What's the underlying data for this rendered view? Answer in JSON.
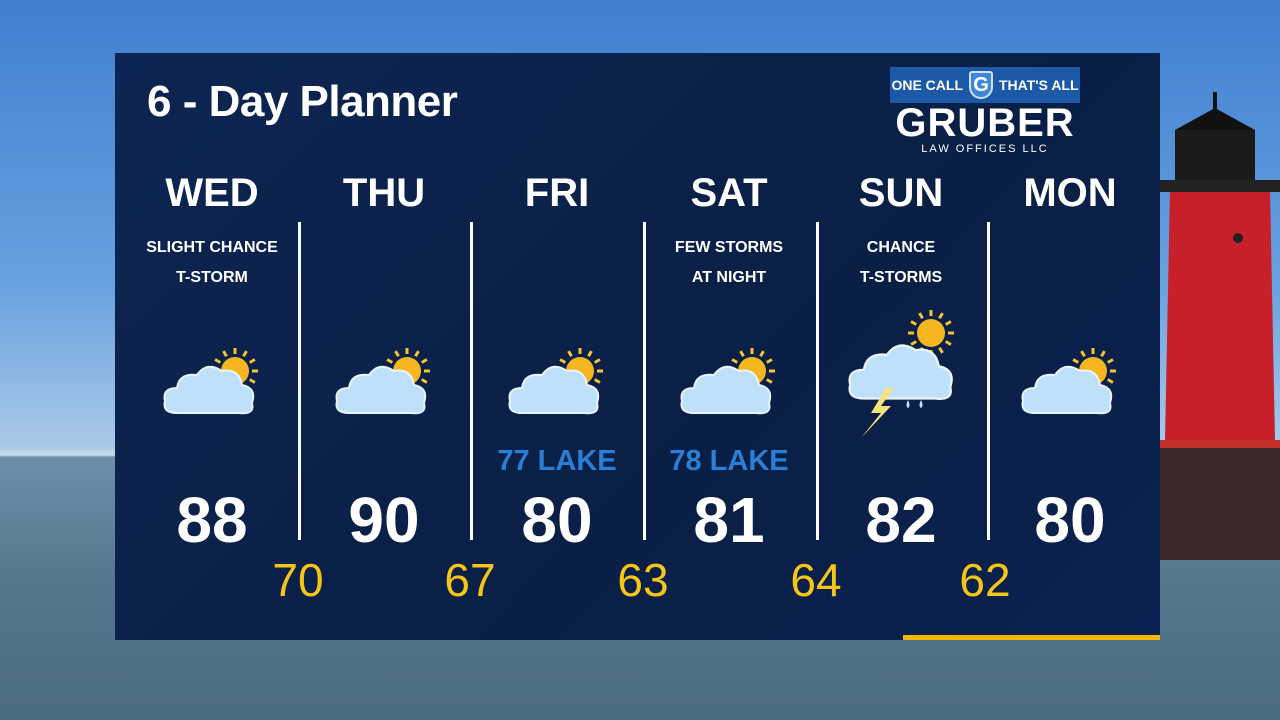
{
  "title": "6 - Day Planner",
  "sponsor": {
    "tagline_left": "ONE CALL",
    "shield_letter": "G",
    "tagline_right": "THAT'S ALL",
    "name": "GRUBER",
    "sub": "LAW OFFICES LLC"
  },
  "colors": {
    "panel": "#0a1f45",
    "low_temp": "#f5c518",
    "lake_temp": "#2a7fd4",
    "accent_bar": "#f5b800"
  },
  "days": [
    {
      "name": "WED",
      "desc1": "SLIGHT CHANCE",
      "desc2": "T-STORM",
      "icon": "partly-cloudy-icon",
      "lake": "",
      "high": "88"
    },
    {
      "name": "THU",
      "desc1": "",
      "desc2": "",
      "icon": "partly-cloudy-icon",
      "lake": "",
      "high": "90"
    },
    {
      "name": "FRI",
      "desc1": "",
      "desc2": "",
      "icon": "partly-cloudy-icon",
      "lake": "77 LAKE",
      "high": "80"
    },
    {
      "name": "SAT",
      "desc1": "FEW STORMS",
      "desc2": "AT NIGHT",
      "icon": "partly-cloudy-icon",
      "lake": "78 LAKE",
      "high": "81"
    },
    {
      "name": "SUN",
      "desc1": "CHANCE",
      "desc2": "T-STORMS",
      "icon": "thunderstorm-icon",
      "lake": "",
      "high": "82"
    },
    {
      "name": "MON",
      "desc1": "",
      "desc2": "",
      "icon": "partly-cloudy-icon",
      "lake": "",
      "high": "80"
    }
  ],
  "lows": [
    "70",
    "67",
    "63",
    "64",
    "62"
  ]
}
